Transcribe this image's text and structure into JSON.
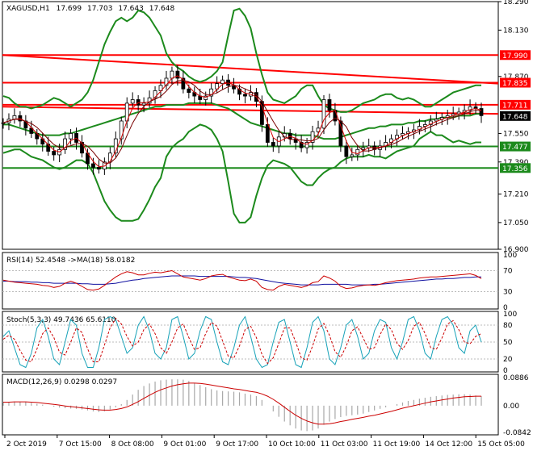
{
  "header": {
    "symbol": "XAGUSD,H1",
    "open": "17.699",
    "high": "17.703",
    "low": "17.643",
    "close": "17.648"
  },
  "colors": {
    "price_line": "#d40000",
    "bollinger": "#1c8a1c",
    "level_red": "#ff0000",
    "level_green": "#1c8a1c",
    "candle": "#000000",
    "rsi_line": "#cc0000",
    "rsi_ma": "#1010a0",
    "stoch_main": "#17a2b8",
    "stoch_signal": "#cc0000",
    "macd_hist": "#a8a8a8",
    "macd_signal": "#cc0000",
    "level_label_red_bg": "#ff0000",
    "level_label_green_bg": "#1c8a1c",
    "current_label_bg": "#000000"
  },
  "chart_data": [
    {
      "type": "candlestick",
      "title": "XAGUSD,H1 17.699 17.703 17.643 17.648",
      "y_ticks": [
        "18.290",
        "18.130",
        "17.870",
        "17.550",
        "17.390",
        "17.210",
        "17.050",
        "16.900"
      ],
      "ylim": [
        16.9,
        18.29
      ],
      "levels": [
        {
          "label": "17.990",
          "value": 17.99,
          "color": "red"
        },
        {
          "label": "17.835",
          "value": 17.835,
          "color": "red"
        },
        {
          "label": "17.711",
          "value": 17.711,
          "color": "red"
        },
        {
          "label": "17.648",
          "value": 17.648,
          "color": "black"
        },
        {
          "label": "17.477",
          "value": 17.477,
          "color": "green"
        },
        {
          "label": "17.356",
          "value": 17.356,
          "color": "green"
        }
      ],
      "trendlines": [
        {
          "from": 17.99,
          "to": 17.83
        },
        {
          "from": 17.7,
          "to": 17.66
        }
      ],
      "close_series": [
        17.61,
        17.63,
        17.65,
        17.62,
        17.58,
        17.55,
        17.52,
        17.49,
        17.45,
        17.43,
        17.46,
        17.52,
        17.55,
        17.5,
        17.44,
        17.38,
        17.36,
        17.35,
        17.39,
        17.44,
        17.52,
        17.62,
        17.72,
        17.74,
        17.71,
        17.72,
        17.75,
        17.79,
        17.82,
        17.86,
        17.9,
        17.86,
        17.8,
        17.78,
        17.76,
        17.74,
        17.76,
        17.8,
        17.83,
        17.85,
        17.82,
        17.8,
        17.77,
        17.76,
        17.78,
        17.73,
        17.6,
        17.5,
        17.48,
        17.53,
        17.55,
        17.52,
        17.5,
        17.47,
        17.5,
        17.56,
        17.58,
        17.74,
        17.68,
        17.62,
        17.48,
        17.42,
        17.43,
        17.46,
        17.47,
        17.48,
        17.46,
        17.48,
        17.5,
        17.52,
        17.54,
        17.55,
        17.56,
        17.57,
        17.59,
        17.6,
        17.62,
        17.63,
        17.64,
        17.65,
        17.66,
        17.67,
        17.68,
        17.7,
        17.69,
        17.65
      ],
      "bollinger_upper": [
        17.76,
        17.75,
        17.72,
        17.7,
        17.7,
        17.69,
        17.7,
        17.71,
        17.73,
        17.75,
        17.74,
        17.72,
        17.7,
        17.72,
        17.74,
        17.78,
        17.85,
        17.95,
        18.05,
        18.12,
        18.18,
        18.2,
        18.18,
        18.2,
        18.24,
        18.23,
        18.2,
        18.15,
        18.1,
        18.0,
        17.95,
        17.92,
        17.9,
        17.87,
        17.85,
        17.84,
        17.85,
        17.87,
        17.9,
        17.95,
        18.1,
        18.24,
        18.25,
        18.21,
        18.14,
        18.0,
        17.88,
        17.78,
        17.74,
        17.73,
        17.72,
        17.74,
        17.76,
        17.8,
        17.82,
        17.82,
        17.76,
        17.71,
        17.69,
        17.68,
        17.67,
        17.67,
        17.68,
        17.7,
        17.72,
        17.73,
        17.74,
        17.76,
        17.77,
        17.77,
        17.75,
        17.74,
        17.75,
        17.74,
        17.72,
        17.7,
        17.7,
        17.72,
        17.74,
        17.76,
        17.78,
        17.79,
        17.8,
        17.81,
        17.82,
        17.82
      ],
      "bollinger_mid": [
        17.6,
        17.6,
        17.59,
        17.58,
        17.57,
        17.56,
        17.55,
        17.54,
        17.54,
        17.54,
        17.54,
        17.55,
        17.55,
        17.56,
        17.57,
        17.58,
        17.59,
        17.6,
        17.61,
        17.62,
        17.63,
        17.64,
        17.65,
        17.66,
        17.67,
        17.68,
        17.69,
        17.7,
        17.7,
        17.71,
        17.71,
        17.71,
        17.71,
        17.72,
        17.72,
        17.72,
        17.72,
        17.72,
        17.71,
        17.7,
        17.69,
        17.67,
        17.65,
        17.63,
        17.61,
        17.6,
        17.59,
        17.58,
        17.57,
        17.56,
        17.55,
        17.55,
        17.54,
        17.54,
        17.54,
        17.54,
        17.53,
        17.52,
        17.52,
        17.52,
        17.53,
        17.54,
        17.55,
        17.56,
        17.57,
        17.58,
        17.58,
        17.59,
        17.59,
        17.6,
        17.6,
        17.6,
        17.61,
        17.61,
        17.62,
        17.62,
        17.63,
        17.63,
        17.64,
        17.64,
        17.64,
        17.65,
        17.65,
        17.65,
        17.66,
        17.66
      ],
      "bollinger_lower": [
        17.44,
        17.45,
        17.46,
        17.46,
        17.44,
        17.42,
        17.41,
        17.4,
        17.38,
        17.36,
        17.35,
        17.36,
        17.38,
        17.4,
        17.4,
        17.38,
        17.33,
        17.25,
        17.17,
        17.12,
        17.08,
        17.06,
        17.06,
        17.06,
        17.07,
        17.12,
        17.18,
        17.25,
        17.3,
        17.42,
        17.47,
        17.5,
        17.52,
        17.56,
        17.58,
        17.6,
        17.59,
        17.57,
        17.52,
        17.45,
        17.28,
        17.1,
        17.05,
        17.05,
        17.08,
        17.2,
        17.3,
        17.37,
        17.4,
        17.39,
        17.38,
        17.36,
        17.32,
        17.28,
        17.26,
        17.26,
        17.3,
        17.33,
        17.35,
        17.36,
        17.39,
        17.41,
        17.42,
        17.42,
        17.42,
        17.43,
        17.42,
        17.42,
        17.41,
        17.43,
        17.45,
        17.46,
        17.47,
        17.48,
        17.52,
        17.54,
        17.56,
        17.54,
        17.54,
        17.52,
        17.5,
        17.51,
        17.5,
        17.49,
        17.5,
        17.5
      ]
    },
    {
      "type": "line",
      "title": "RSI(14) 52.4548 ->MA(18) 58.0182",
      "y_ticks": [
        "100",
        "70",
        "30",
        "0"
      ],
      "levels": [
        70,
        30
      ],
      "ylim": [
        0,
        100
      ],
      "series": [
        {
          "name": "RSI(14)",
          "values": [
            52,
            50,
            48,
            47,
            46,
            45,
            44,
            42,
            41,
            38,
            40,
            46,
            50,
            46,
            40,
            34,
            33,
            35,
            42,
            50,
            58,
            64,
            68,
            66,
            62,
            62,
            65,
            67,
            66,
            68,
            70,
            64,
            58,
            56,
            54,
            52,
            55,
            60,
            62,
            63,
            58,
            55,
            52,
            51,
            54,
            50,
            38,
            34,
            33,
            40,
            44,
            42,
            40,
            38,
            41,
            47,
            49,
            60,
            56,
            50,
            40,
            36,
            37,
            40,
            42,
            43,
            42,
            44,
            47,
            49,
            51,
            52,
            53,
            54,
            56,
            57,
            58,
            58,
            59,
            60,
            61,
            62,
            63,
            64,
            61,
            55
          ]
        },
        {
          "name": "MA(18)",
          "values": [
            50,
            50,
            49,
            49,
            49,
            48,
            48,
            47,
            47,
            46,
            46,
            46,
            46,
            46,
            45,
            45,
            44,
            44,
            44,
            45,
            46,
            48,
            50,
            52,
            53,
            55,
            56,
            57,
            58,
            59,
            60,
            60,
            60,
            60,
            60,
            59,
            59,
            59,
            59,
            59,
            59,
            58,
            57,
            57,
            56,
            55,
            53,
            51,
            49,
            47,
            46,
            45,
            44,
            43,
            43,
            43,
            43,
            44,
            44,
            44,
            44,
            44,
            43,
            43,
            43,
            43,
            44,
            44,
            45,
            46,
            47,
            48,
            49,
            50,
            51,
            52,
            53,
            54,
            54,
            55,
            55,
            56,
            57,
            57,
            58,
            58
          ]
        }
      ]
    },
    {
      "type": "line",
      "title": "Stoch(5,3,3) 49.7436 65.6110",
      "y_ticks": [
        "100",
        "80",
        "50",
        "20",
        "0"
      ],
      "levels": [
        80,
        50,
        20
      ],
      "ylim": [
        0,
        100
      ],
      "series": [
        {
          "name": "Stoch main",
          "values": [
            60,
            70,
            40,
            10,
            5,
            30,
            75,
            90,
            60,
            20,
            10,
            50,
            90,
            80,
            30,
            5,
            5,
            40,
            90,
            95,
            90,
            60,
            30,
            40,
            80,
            95,
            70,
            30,
            20,
            40,
            90,
            95,
            60,
            20,
            30,
            70,
            95,
            90,
            50,
            15,
            10,
            40,
            80,
            95,
            60,
            20,
            5,
            10,
            50,
            85,
            90,
            50,
            10,
            5,
            40,
            85,
            95,
            70,
            20,
            10,
            40,
            80,
            90,
            60,
            20,
            30,
            70,
            90,
            85,
            40,
            20,
            50,
            90,
            95,
            70,
            30,
            20,
            60,
            90,
            95,
            80,
            40,
            30,
            70,
            80,
            50
          ]
        },
        {
          "name": "Stoch signal",
          "values": [
            55,
            62,
            55,
            35,
            18,
            15,
            38,
            65,
            75,
            58,
            32,
            27,
            50,
            75,
            67,
            38,
            15,
            15,
            45,
            75,
            92,
            82,
            60,
            43,
            50,
            72,
            82,
            65,
            40,
            30,
            50,
            75,
            82,
            58,
            37,
            40,
            65,
            85,
            78,
            52,
            25,
            22,
            43,
            72,
            78,
            58,
            28,
            12,
            22,
            48,
            75,
            75,
            50,
            22,
            18,
            43,
            73,
            83,
            62,
            33,
            23,
            43,
            70,
            77,
            57,
            37,
            40,
            63,
            82,
            72,
            48,
            37,
            53,
            78,
            85,
            65,
            40,
            37,
            57,
            82,
            88,
            72,
            50,
            47,
            60,
            65
          ]
        }
      ]
    },
    {
      "type": "bar",
      "title": "MACD(12,26,9) 0.0298 0.0297",
      "y_ticks": [
        "0.0886",
        "0.00",
        "-0.0842"
      ],
      "ylim": [
        -0.0842,
        0.0886
      ],
      "series": [
        {
          "name": "MACD(12,26,9)",
          "values": [
            0.01,
            0.012,
            0.013,
            0.012,
            0.011,
            0.009,
            0.006,
            0.003,
            0.0,
            -0.003,
            -0.006,
            -0.008,
            -0.009,
            -0.01,
            -0.012,
            -0.015,
            -0.018,
            -0.02,
            -0.018,
            -0.012,
            -0.005,
            0.005,
            0.018,
            0.035,
            0.05,
            0.062,
            0.07,
            0.076,
            0.08,
            0.082,
            0.083,
            0.083,
            0.082,
            0.078,
            0.072,
            0.065,
            0.058,
            0.052,
            0.048,
            0.046,
            0.045,
            0.044,
            0.042,
            0.038,
            0.035,
            0.03,
            0.018,
            0.0,
            -0.018,
            -0.035,
            -0.05,
            -0.062,
            -0.072,
            -0.078,
            -0.08,
            -0.078,
            -0.072,
            -0.06,
            -0.05,
            -0.042,
            -0.036,
            -0.032,
            -0.03,
            -0.028,
            -0.025,
            -0.02,
            -0.015,
            -0.01,
            -0.005,
            0.0,
            0.005,
            0.01,
            0.015,
            0.018,
            0.022,
            0.025,
            0.028,
            0.03,
            0.032,
            0.034,
            0.035,
            0.036,
            0.036,
            0.035,
            0.032,
            0.03
          ]
        },
        {
          "name": "Signal",
          "values": [
            0.011,
            0.011,
            0.012,
            0.012,
            0.012,
            0.011,
            0.01,
            0.008,
            0.006,
            0.004,
            0.002,
            -0.001,
            -0.003,
            -0.005,
            -0.007,
            -0.009,
            -0.011,
            -0.013,
            -0.014,
            -0.014,
            -0.012,
            -0.009,
            -0.004,
            0.004,
            0.013,
            0.023,
            0.033,
            0.042,
            0.05,
            0.056,
            0.062,
            0.066,
            0.069,
            0.071,
            0.071,
            0.07,
            0.068,
            0.065,
            0.062,
            0.059,
            0.056,
            0.053,
            0.051,
            0.048,
            0.045,
            0.042,
            0.037,
            0.03,
            0.02,
            0.008,
            -0.005,
            -0.018,
            -0.03,
            -0.04,
            -0.048,
            -0.054,
            -0.058,
            -0.058,
            -0.057,
            -0.054,
            -0.05,
            -0.047,
            -0.043,
            -0.04,
            -0.037,
            -0.033,
            -0.03,
            -0.026,
            -0.022,
            -0.018,
            -0.013,
            -0.008,
            -0.004,
            0.0,
            0.004,
            0.008,
            0.012,
            0.015,
            0.018,
            0.021,
            0.024,
            0.026,
            0.028,
            0.029,
            0.03,
            0.03
          ]
        }
      ]
    }
  ],
  "time_axis": [
    "2 Oct 2019",
    "7 Oct 15:00",
    "8 Oct 08:00",
    "9 Oct 01:00",
    "9 Oct 17:00",
    "10 Oct 10:00",
    "11 Oct 03:00",
    "11 Oct 19:00",
    "14 Oct 12:00",
    "15 Oct 05:00"
  ]
}
